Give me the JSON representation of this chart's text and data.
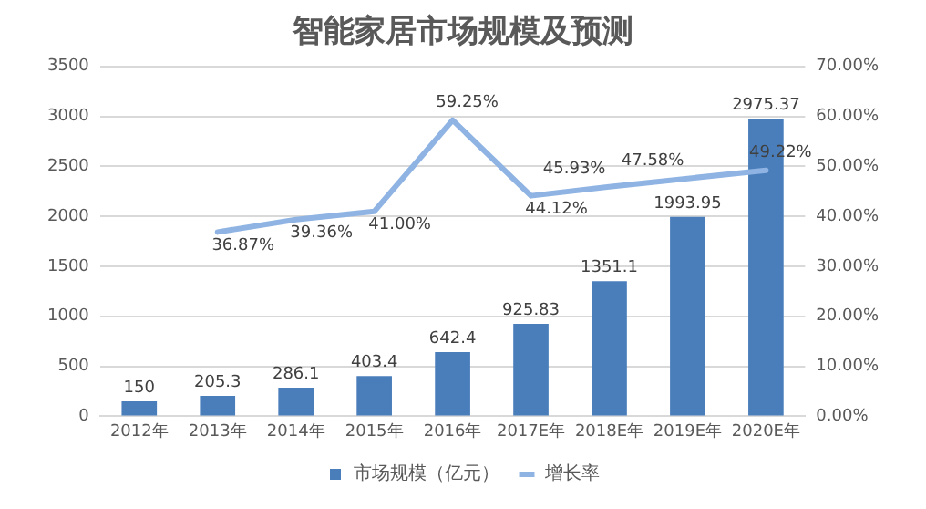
{
  "chart_data": {
    "type": "bar",
    "title": "智能家居市场规模及预测",
    "categories": [
      "2012年",
      "2013年",
      "2014年",
      "2015年",
      "2016年",
      "2017E年",
      "2018E年",
      "2019E年",
      "2020E年"
    ],
    "series": [
      {
        "name": "市场规模（亿元）",
        "type": "bar",
        "color": "#4a7ebb",
        "values": [
          150,
          205.3,
          286.1,
          403.4,
          642.4,
          925.83,
          1351.1,
          1993.95,
          2975.37
        ],
        "value_labels": [
          "150",
          "205.3",
          "286.1",
          "403.4",
          "642.4",
          "925.83",
          "1351.1",
          "1993.95",
          "2975.37"
        ]
      },
      {
        "name": "增长率",
        "type": "line",
        "axis": "y2",
        "color": "#8fb4e3",
        "values": [
          null,
          36.87,
          39.36,
          41.0,
          59.25,
          44.12,
          45.93,
          47.58,
          49.22
        ],
        "value_labels": [
          null,
          "36.87%",
          "39.36%",
          "41.00%",
          "59.25%",
          "44.12%",
          "45.93%",
          "47.58%",
          "49.22%"
        ]
      }
    ],
    "ylim": [
      0,
      3500
    ],
    "yticks": [
      0,
      500,
      1000,
      1500,
      2000,
      2500,
      3000,
      3500
    ],
    "y2lim": [
      0,
      70
    ],
    "y2ticks": [
      {
        "value": 0,
        "label": "0.00%"
      },
      {
        "value": 10,
        "label": "10.00%"
      },
      {
        "value": 20,
        "label": "20.00%"
      },
      {
        "value": 30,
        "label": "30.00%"
      },
      {
        "value": 40,
        "label": "40.00%"
      },
      {
        "value": 50,
        "label": "50.00%"
      },
      {
        "value": 60,
        "label": "60.00%"
      },
      {
        "value": 70,
        "label": "70.00%"
      }
    ],
    "grid": "y",
    "legend": "bottom",
    "marker": "none",
    "line_style": "solid"
  }
}
